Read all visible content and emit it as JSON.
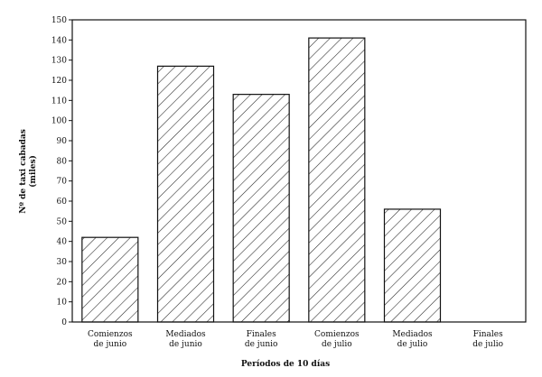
{
  "chart_data": {
    "type": "bar",
    "xlabel": "Períodos de 10 días",
    "ylabel": [
      "Nº de taxi cabadas",
      "(miles)"
    ],
    "categories": [
      [
        "Comienzos",
        "de junio"
      ],
      [
        "Mediados",
        "de junio"
      ],
      [
        "Finales",
        "de junio"
      ],
      [
        "Comienzos",
        "de julio"
      ],
      [
        "Mediados",
        "de julio"
      ],
      [
        "Finales",
        "de julio"
      ]
    ],
    "values": [
      42,
      127,
      113,
      141,
      56,
      0
    ],
    "ylim": [
      0,
      150
    ],
    "yticks": [
      0,
      10,
      20,
      30,
      40,
      50,
      60,
      70,
      80,
      90,
      100,
      110,
      120,
      130,
      140,
      150
    ],
    "bar_fill": "diagonal-hatch",
    "colors": {
      "stroke": "#111111",
      "background": "#ffffff"
    },
    "grid": false
  }
}
